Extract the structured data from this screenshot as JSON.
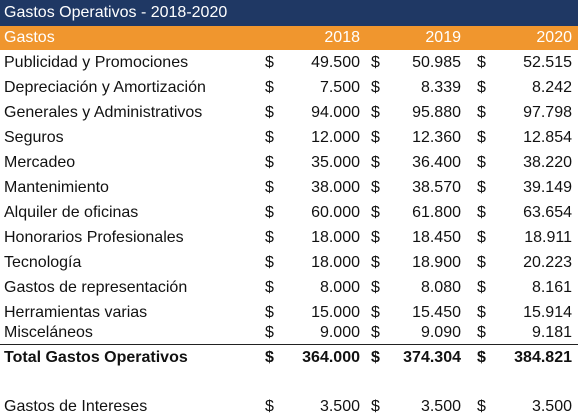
{
  "title": "Gastos Operativos - 2018-2020",
  "header": {
    "label": "Gastos",
    "years": [
      "2018",
      "2019",
      "2020"
    ]
  },
  "currency": "$",
  "rows": [
    {
      "label": "Publicidad y Promociones",
      "values": [
        "49.500",
        "50.985",
        "52.515"
      ]
    },
    {
      "label": "Depreciación y Amortización",
      "values": [
        "7.500",
        "8.339",
        "8.242"
      ]
    },
    {
      "label": "Generales y Administrativos",
      "values": [
        "94.000",
        "95.880",
        "97.798"
      ]
    },
    {
      "label": "Seguros",
      "values": [
        "12.000",
        "12.360",
        "12.854"
      ]
    },
    {
      "label": "Mercadeo",
      "values": [
        "35.000",
        "36.400",
        "38.220"
      ]
    },
    {
      "label": "Mantenimiento",
      "values": [
        "38.000",
        "38.570",
        "39.149"
      ]
    },
    {
      "label": "Alquiler de oficinas",
      "values": [
        "60.000",
        "61.800",
        "63.654"
      ]
    },
    {
      "label": "Honorarios Profesionales",
      "values": [
        "18.000",
        "18.450",
        "18.911"
      ]
    },
    {
      "label": "Tecnología",
      "values": [
        "18.000",
        "18.900",
        "20.223"
      ]
    },
    {
      "label": "Gastos de representación",
      "values": [
        "8.000",
        "8.080",
        "8.161"
      ]
    },
    {
      "label": "Herramientas varias",
      "values": [
        "15.000",
        "15.450",
        "15.914"
      ]
    },
    {
      "label": "Misceláneos",
      "values": [
        "9.000",
        "9.090",
        "9.181"
      ]
    }
  ],
  "total": {
    "label": "Total Gastos Operativos",
    "values": [
      "364.000",
      "374.304",
      "384.821"
    ]
  },
  "interest": {
    "label": "Gastos de Intereses",
    "values": [
      "3.500",
      "3.500",
      "3.500"
    ]
  }
}
